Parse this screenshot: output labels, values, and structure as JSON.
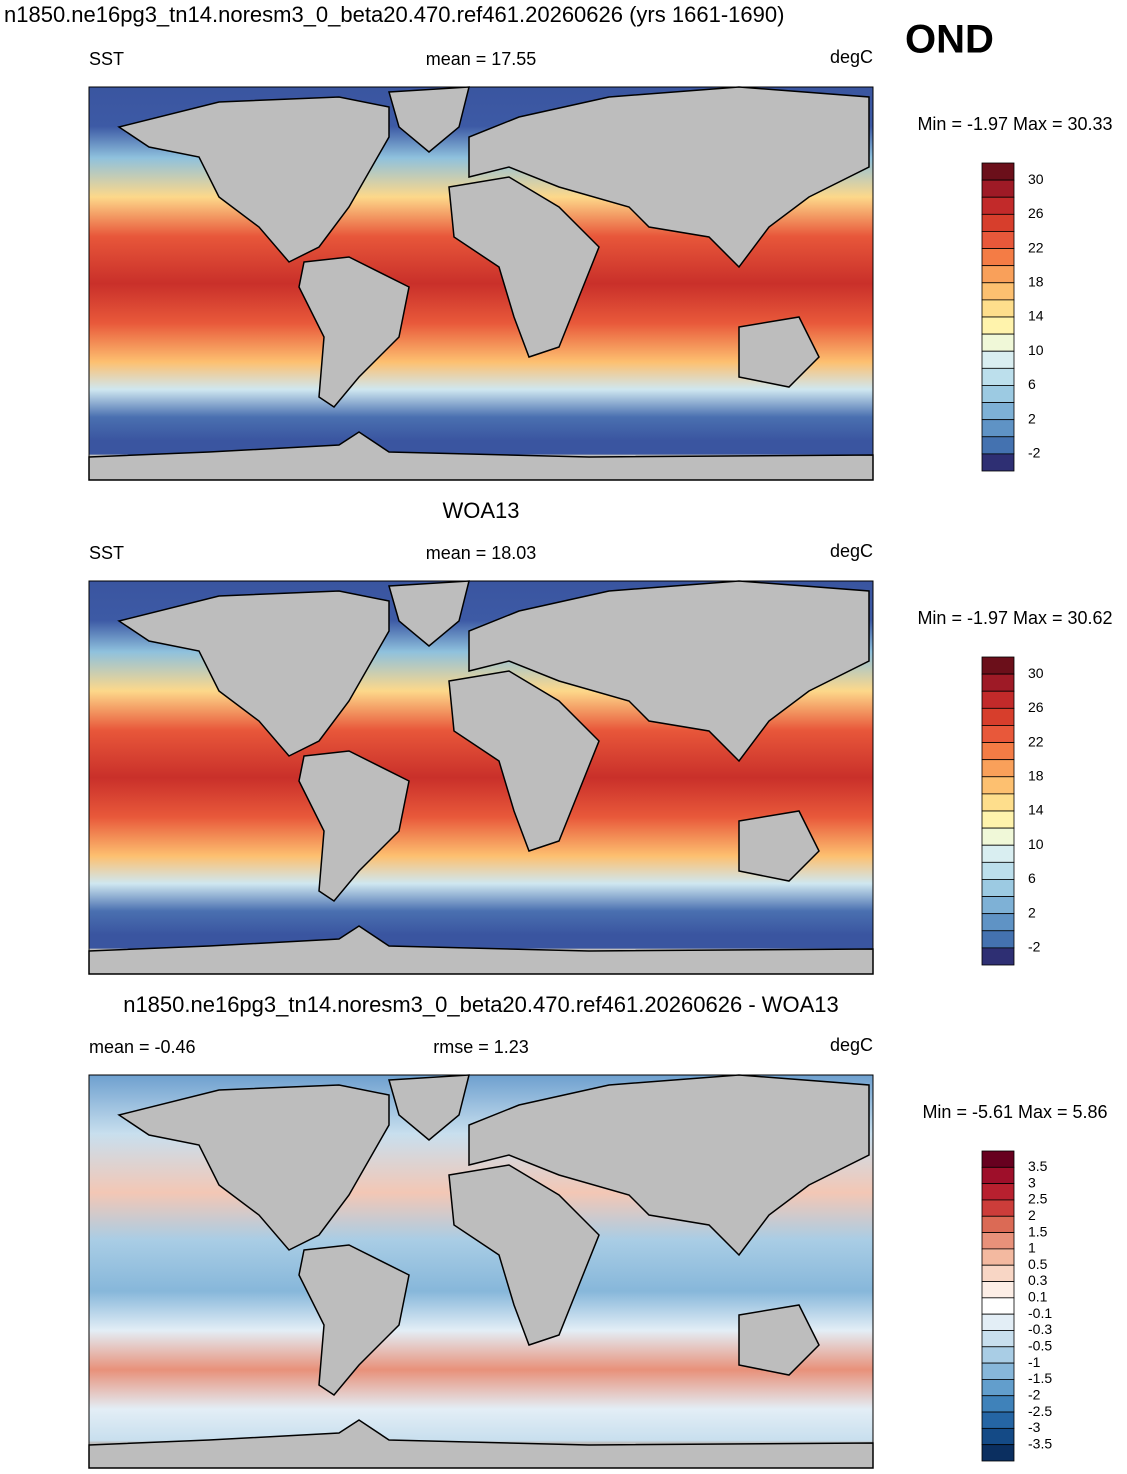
{
  "title": "n1850.ne16pg3_tn14.noresm3_0_beta20.470.ref461.20260626 (yrs 1661-1690)",
  "season": "OND",
  "panels": [
    {
      "left": "SST",
      "center": "mean =  17.55",
      "units": "degC",
      "minmax": "Min =  -1.97 Max =  30.33",
      "colorbar": {
        "labels": [
          30,
          26,
          22,
          18,
          14,
          10,
          6,
          2,
          -2
        ],
        "colors": [
          "#6b0f1a",
          "#9e1a26",
          "#c22a2a",
          "#d73e2c",
          "#e8583a",
          "#f47c45",
          "#f9a05a",
          "#fdc070",
          "#fede8c",
          "#fff3ac",
          "#f0f8d8",
          "#d9eef1",
          "#bcdfec",
          "#9ccae2",
          "#7eb1d6",
          "#5f93c5",
          "#4472b0",
          "#2e2f73"
        ]
      }
    },
    {
      "heading": "WOA13",
      "left": "SST",
      "center": "mean =  18.03",
      "units": "degC",
      "minmax": "Min =  -1.97 Max =  30.62",
      "colorbar": {
        "labels": [
          30,
          26,
          22,
          18,
          14,
          10,
          6,
          2,
          -2
        ],
        "colors": [
          "#6b0f1a",
          "#9e1a26",
          "#c22a2a",
          "#d73e2c",
          "#e8583a",
          "#f47c45",
          "#f9a05a",
          "#fdc070",
          "#fede8c",
          "#fff3ac",
          "#f0f8d8",
          "#d9eef1",
          "#bcdfec",
          "#9ccae2",
          "#7eb1d6",
          "#5f93c5",
          "#4472b0",
          "#2e2f73"
        ]
      }
    },
    {
      "heading": "n1850.ne16pg3_tn14.noresm3_0_beta20.470.ref461.20260626 - WOA13",
      "left": "mean =  -0.46",
      "center": "rmse =   1.23",
      "units": "degC",
      "minmax": "Min =  -5.61 Max =   5.86",
      "colorbar": {
        "labels": [
          3.5,
          3,
          2.5,
          2,
          1.5,
          1,
          0.5,
          0.3,
          0.1,
          -0.1,
          -0.3,
          -0.5,
          -1,
          -1.5,
          -2,
          -2.5,
          -3,
          -3.5
        ],
        "colors": [
          "#67001f",
          "#9e0f2a",
          "#b8202f",
          "#cc3d3a",
          "#db6a55",
          "#e8917a",
          "#f3b9a0",
          "#f8d6c5",
          "#fdeee6",
          "#ffffff",
          "#e3eef6",
          "#c8dfee",
          "#a9cde5",
          "#87b7da",
          "#629ecc",
          "#3f82ba",
          "#2565a4",
          "#144a86",
          "#0b2f60"
        ]
      }
    }
  ]
}
